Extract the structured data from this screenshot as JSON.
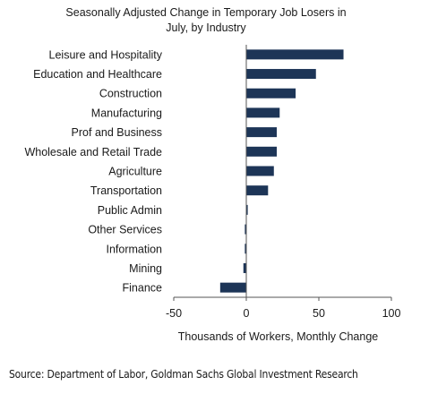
{
  "chart_data": {
    "type": "bar",
    "orientation": "horizontal",
    "title": "Seasonally Adjusted Change in Temporary  Job Losers in\nJuly, by Industry",
    "xlabel": "Thousands  of Workers, Monthly Change",
    "ylabel": "",
    "categories": [
      "Leisure and Hospitality",
      "Education and Healthcare",
      "Construction",
      "Manufacturing",
      "Prof and Business",
      "Wholesale and Retail Trade",
      "Agriculture",
      "Transportation",
      "Public Admin",
      "Other Services",
      "Information",
      "Mining",
      "Finance"
    ],
    "values": [
      67,
      48,
      34,
      23,
      21,
      21,
      19,
      15,
      1,
      -1,
      -1,
      -2,
      -18
    ],
    "xlim": [
      -50,
      100
    ],
    "xticks": [
      "-50",
      "0",
      "50",
      "100"
    ],
    "grid": false,
    "bar_color": "#1d3557"
  },
  "source": "Source: Department of Labor, Goldman Sachs Global Investment Research"
}
